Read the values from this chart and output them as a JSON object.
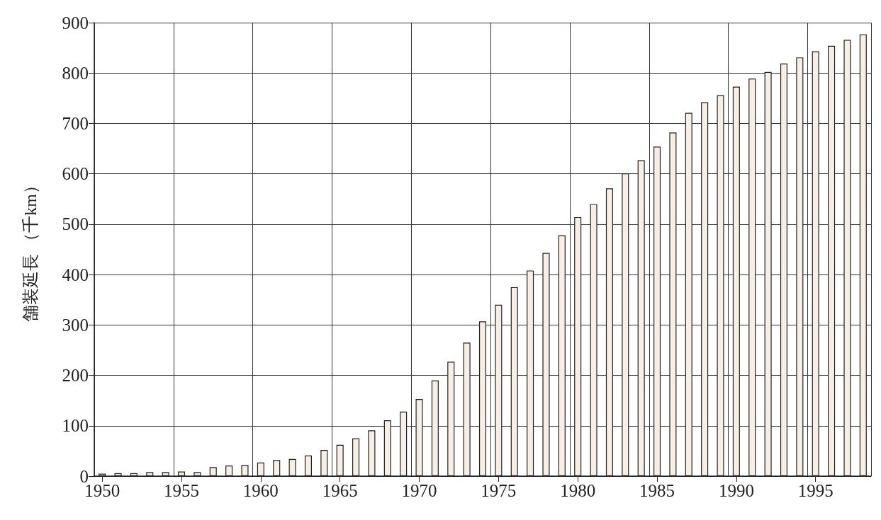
{
  "chart_data": {
    "type": "bar",
    "ylabel": "舗装延長 （千km）",
    "categories": [
      "1950",
      null,
      null,
      null,
      null,
      "1955",
      null,
      null,
      null,
      null,
      "1960",
      null,
      null,
      null,
      null,
      "1965",
      null,
      null,
      null,
      null,
      "1970",
      null,
      null,
      null,
      null,
      "1975",
      null,
      null,
      null,
      null,
      "1980",
      null,
      null,
      null,
      null,
      "1985",
      null,
      null,
      null,
      null,
      "1990",
      null,
      null,
      null,
      null,
      "1995",
      null,
      null,
      null
    ],
    "values": [
      5,
      6,
      6,
      8,
      8,
      9,
      8,
      18,
      21,
      22,
      27,
      32,
      34,
      41,
      52,
      62,
      75,
      91,
      111,
      128,
      153,
      190,
      227,
      265,
      307,
      340,
      375,
      408,
      443,
      478,
      514,
      540,
      571,
      601,
      627,
      654,
      682,
      721,
      742,
      756,
      773,
      789,
      802,
      819,
      831,
      843,
      854,
      866,
      877
    ],
    "color": "#f7efe4",
    "ylim": [
      0,
      900
    ],
    "yticks": [
      0,
      100,
      200,
      300,
      400,
      500,
      600,
      700,
      800,
      900
    ],
    "grid": true
  }
}
